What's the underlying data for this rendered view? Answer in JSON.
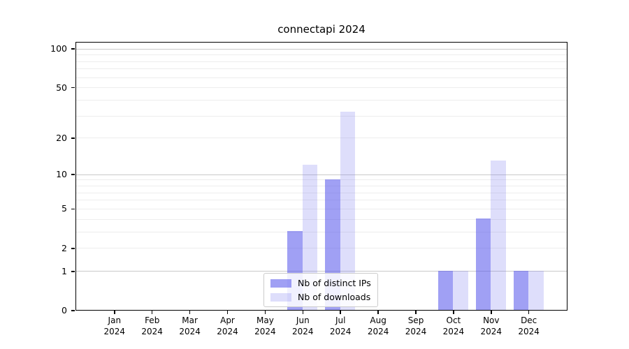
{
  "chart_data": {
    "type": "bar",
    "title": "connectapi 2024",
    "x_year": "2024",
    "categories": [
      "Jan",
      "Feb",
      "Mar",
      "Apr",
      "May",
      "Jun",
      "Jul",
      "Aug",
      "Sep",
      "Oct",
      "Nov",
      "Dec"
    ],
    "series": [
      {
        "name": "Nb of distinct IPs",
        "color": "rgba(82,82,235,0.55)",
        "values": [
          0,
          0,
          0,
          0,
          0,
          3,
          9,
          0,
          0,
          1,
          4,
          1
        ]
      },
      {
        "name": "Nb of downloads",
        "color": "rgba(123,123,240,0.25)",
        "values": [
          0,
          0,
          0,
          0,
          0,
          12,
          32,
          0,
          0,
          1,
          13,
          1
        ]
      }
    ],
    "y_axis": {
      "scale": "log1p",
      "tick_values": [
        0,
        1,
        2,
        5,
        10,
        20,
        50,
        100
      ],
      "major_gridlines": [
        1,
        10,
        100
      ],
      "minor_gridlines": [
        2,
        3,
        4,
        5,
        6,
        7,
        8,
        9,
        20,
        30,
        40,
        50,
        60,
        70,
        80,
        90
      ],
      "ymax": 117
    },
    "legend_position": "lower center",
    "grid": true,
    "colors": {
      "spine": "#000000",
      "major_grid": "#c9c9c9",
      "minor_grid": "#ededed",
      "text": "#000000",
      "legend_border": "#cccccc"
    }
  }
}
